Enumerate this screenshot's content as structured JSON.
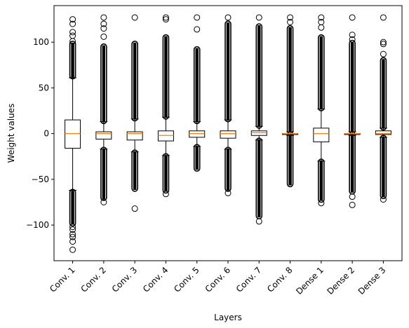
{
  "chart_data": {
    "type": "box",
    "title": "",
    "xlabel": "Layers",
    "ylabel": "Weight values",
    "ylim": [
      -139,
      140
    ],
    "yticks": [
      100,
      50,
      0,
      -50,
      -100
    ],
    "ytick_labels": [
      "100",
      "50",
      "0",
      "−50",
      "−100"
    ],
    "grid": false,
    "colors": {
      "box": "#000000",
      "median": "#ff7f0e",
      "background": "#ffffff"
    },
    "categories": [
      "Conv. 1",
      "Conv. 2",
      "Conv. 3",
      "Conv. 4",
      "Conv. 5",
      "Conv. 6",
      "Conv. 7",
      "Conv. 8",
      "Dense 1",
      "Dense 2",
      "Dense 3"
    ],
    "boxes": [
      {
        "label": "Conv. 1",
        "q1": -16,
        "median": 0,
        "q3": 15,
        "whisker_low": -62,
        "whisker_high": 61,
        "outliers_high_range": [
          63,
          98
        ],
        "outliers_low_range": [
          -98,
          -64
        ],
        "outliers": [
          125,
          120,
          111,
          107,
          101,
          -102,
          -105,
          -110,
          -113,
          -118,
          -127
        ]
      },
      {
        "label": "Conv. 2",
        "q1": -6,
        "median": 0,
        "q3": 2,
        "whisker_low": -17,
        "whisker_high": 13,
        "outliers_high_range": [
          14,
          95
        ],
        "outliers_low_range": [
          -70,
          -18
        ],
        "outliers": [
          127,
          120,
          115,
          106,
          -75
        ]
      },
      {
        "label": "Conv. 3",
        "q1": -7,
        "median": 0,
        "q3": 2,
        "whisker_low": -20,
        "whisker_high": 16,
        "outliers_high_range": [
          17,
          98
        ],
        "outliers_low_range": [
          -60,
          -21
        ],
        "outliers": [
          127,
          -82
        ]
      },
      {
        "label": "Conv. 4",
        "q1": -8,
        "median": -2,
        "q3": 3,
        "whisker_low": -24,
        "whisker_high": 18,
        "outliers_high_range": [
          19,
          105
        ],
        "outliers_low_range": [
          -62,
          -25
        ],
        "outliers": [
          127,
          125,
          -66
        ]
      },
      {
        "label": "Conv. 5",
        "q1": -4,
        "median": 0,
        "q3": 3,
        "whisker_low": -14,
        "whisker_high": 13,
        "outliers_high_range": [
          14,
          92
        ],
        "outliers_low_range": [
          -38,
          -15
        ],
        "outliers": [
          127,
          114
        ]
      },
      {
        "label": "Conv. 6",
        "q1": -5,
        "median": 0,
        "q3": 3,
        "whisker_low": -17,
        "whisker_high": 15,
        "outliers_high_range": [
          16,
          120
        ],
        "outliers_low_range": [
          -60,
          -18
        ],
        "outliers": [
          127,
          -65
        ]
      },
      {
        "label": "Conv. 7",
        "q1": -2,
        "median": 1,
        "q3": 3,
        "whisker_low": -7,
        "whisker_high": 8,
        "outliers_high_range": [
          9,
          117
        ],
        "outliers_low_range": [
          -90,
          -8
        ],
        "outliers": [
          127,
          -96
        ]
      },
      {
        "label": "Conv. 8",
        "q1": -1,
        "median": 0,
        "q3": 0,
        "whisker_low": -2,
        "whisker_high": 2,
        "outliers_high_range": [
          3,
          115
        ],
        "outliers_low_range": [
          -55,
          -3
        ],
        "outliers": [
          127,
          122
        ]
      },
      {
        "label": "Dense 1",
        "q1": -9,
        "median": 0,
        "q3": 6,
        "whisker_low": -30,
        "whisker_high": 27,
        "outliers_high_range": [
          28,
          105
        ],
        "outliers_low_range": [
          -72,
          -31
        ],
        "outliers": [
          127,
          122,
          116,
          -76
        ]
      },
      {
        "label": "Dense 2",
        "q1": -1,
        "median": 0,
        "q3": 0,
        "whisker_low": -2,
        "whisker_high": 2,
        "outliers_high_range": [
          3,
          99
        ],
        "outliers_low_range": [
          -63,
          -3
        ],
        "outliers": [
          127,
          108,
          103,
          -69,
          -78
        ]
      },
      {
        "label": "Dense 3",
        "q1": -1,
        "median": 0,
        "q3": 3,
        "whisker_low": -4,
        "whisker_high": 6,
        "outliers_high_range": [
          7,
          80
        ],
        "outliers_low_range": [
          -68,
          -5
        ],
        "outliers": [
          127,
          100,
          98,
          87,
          -72
        ]
      }
    ]
  }
}
